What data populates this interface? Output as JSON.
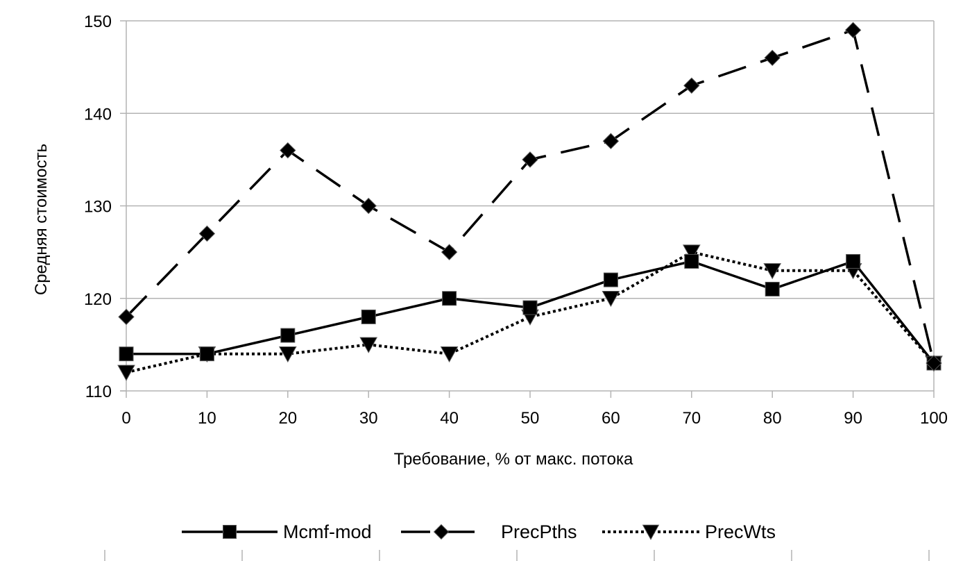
{
  "chart_data": {
    "type": "line",
    "title": "",
    "xlabel": "Требование, % от макс. потока",
    "ylabel": "Средняя стоимость",
    "x": [
      0,
      10,
      20,
      30,
      40,
      50,
      60,
      70,
      80,
      90,
      100
    ],
    "x_tick_labels": [
      "0",
      "10",
      "20",
      "30",
      "40",
      "50",
      "60",
      "70",
      "80",
      "90",
      "100"
    ],
    "xlim": [
      0,
      100
    ],
    "ylim": [
      110,
      150
    ],
    "y_ticks": [
      110,
      120,
      130,
      140,
      150
    ],
    "y_tick_labels": [
      "110",
      "120",
      "130",
      "140",
      "150"
    ],
    "grid": true,
    "legend_position": "bottom",
    "series": [
      {
        "name": "Mcmf-mod",
        "values": [
          114,
          114,
          116,
          118,
          120,
          119,
          122,
          124,
          121,
          124,
          113
        ],
        "marker": "square",
        "line_style": "solid",
        "color": "#000000"
      },
      {
        "name": "PrecPths",
        "values": [
          118,
          127,
          136,
          130,
          125,
          135,
          137,
          143,
          146,
          149,
          113
        ],
        "marker": "diamond",
        "line_style": "dashed",
        "color": "#000000"
      },
      {
        "name": "PrecWts",
        "values": [
          112,
          114,
          114,
          115,
          114,
          118,
          120,
          125,
          123,
          123,
          113
        ],
        "marker": "triangle-down",
        "line_style": "dotted",
        "color": "#000000"
      }
    ]
  }
}
